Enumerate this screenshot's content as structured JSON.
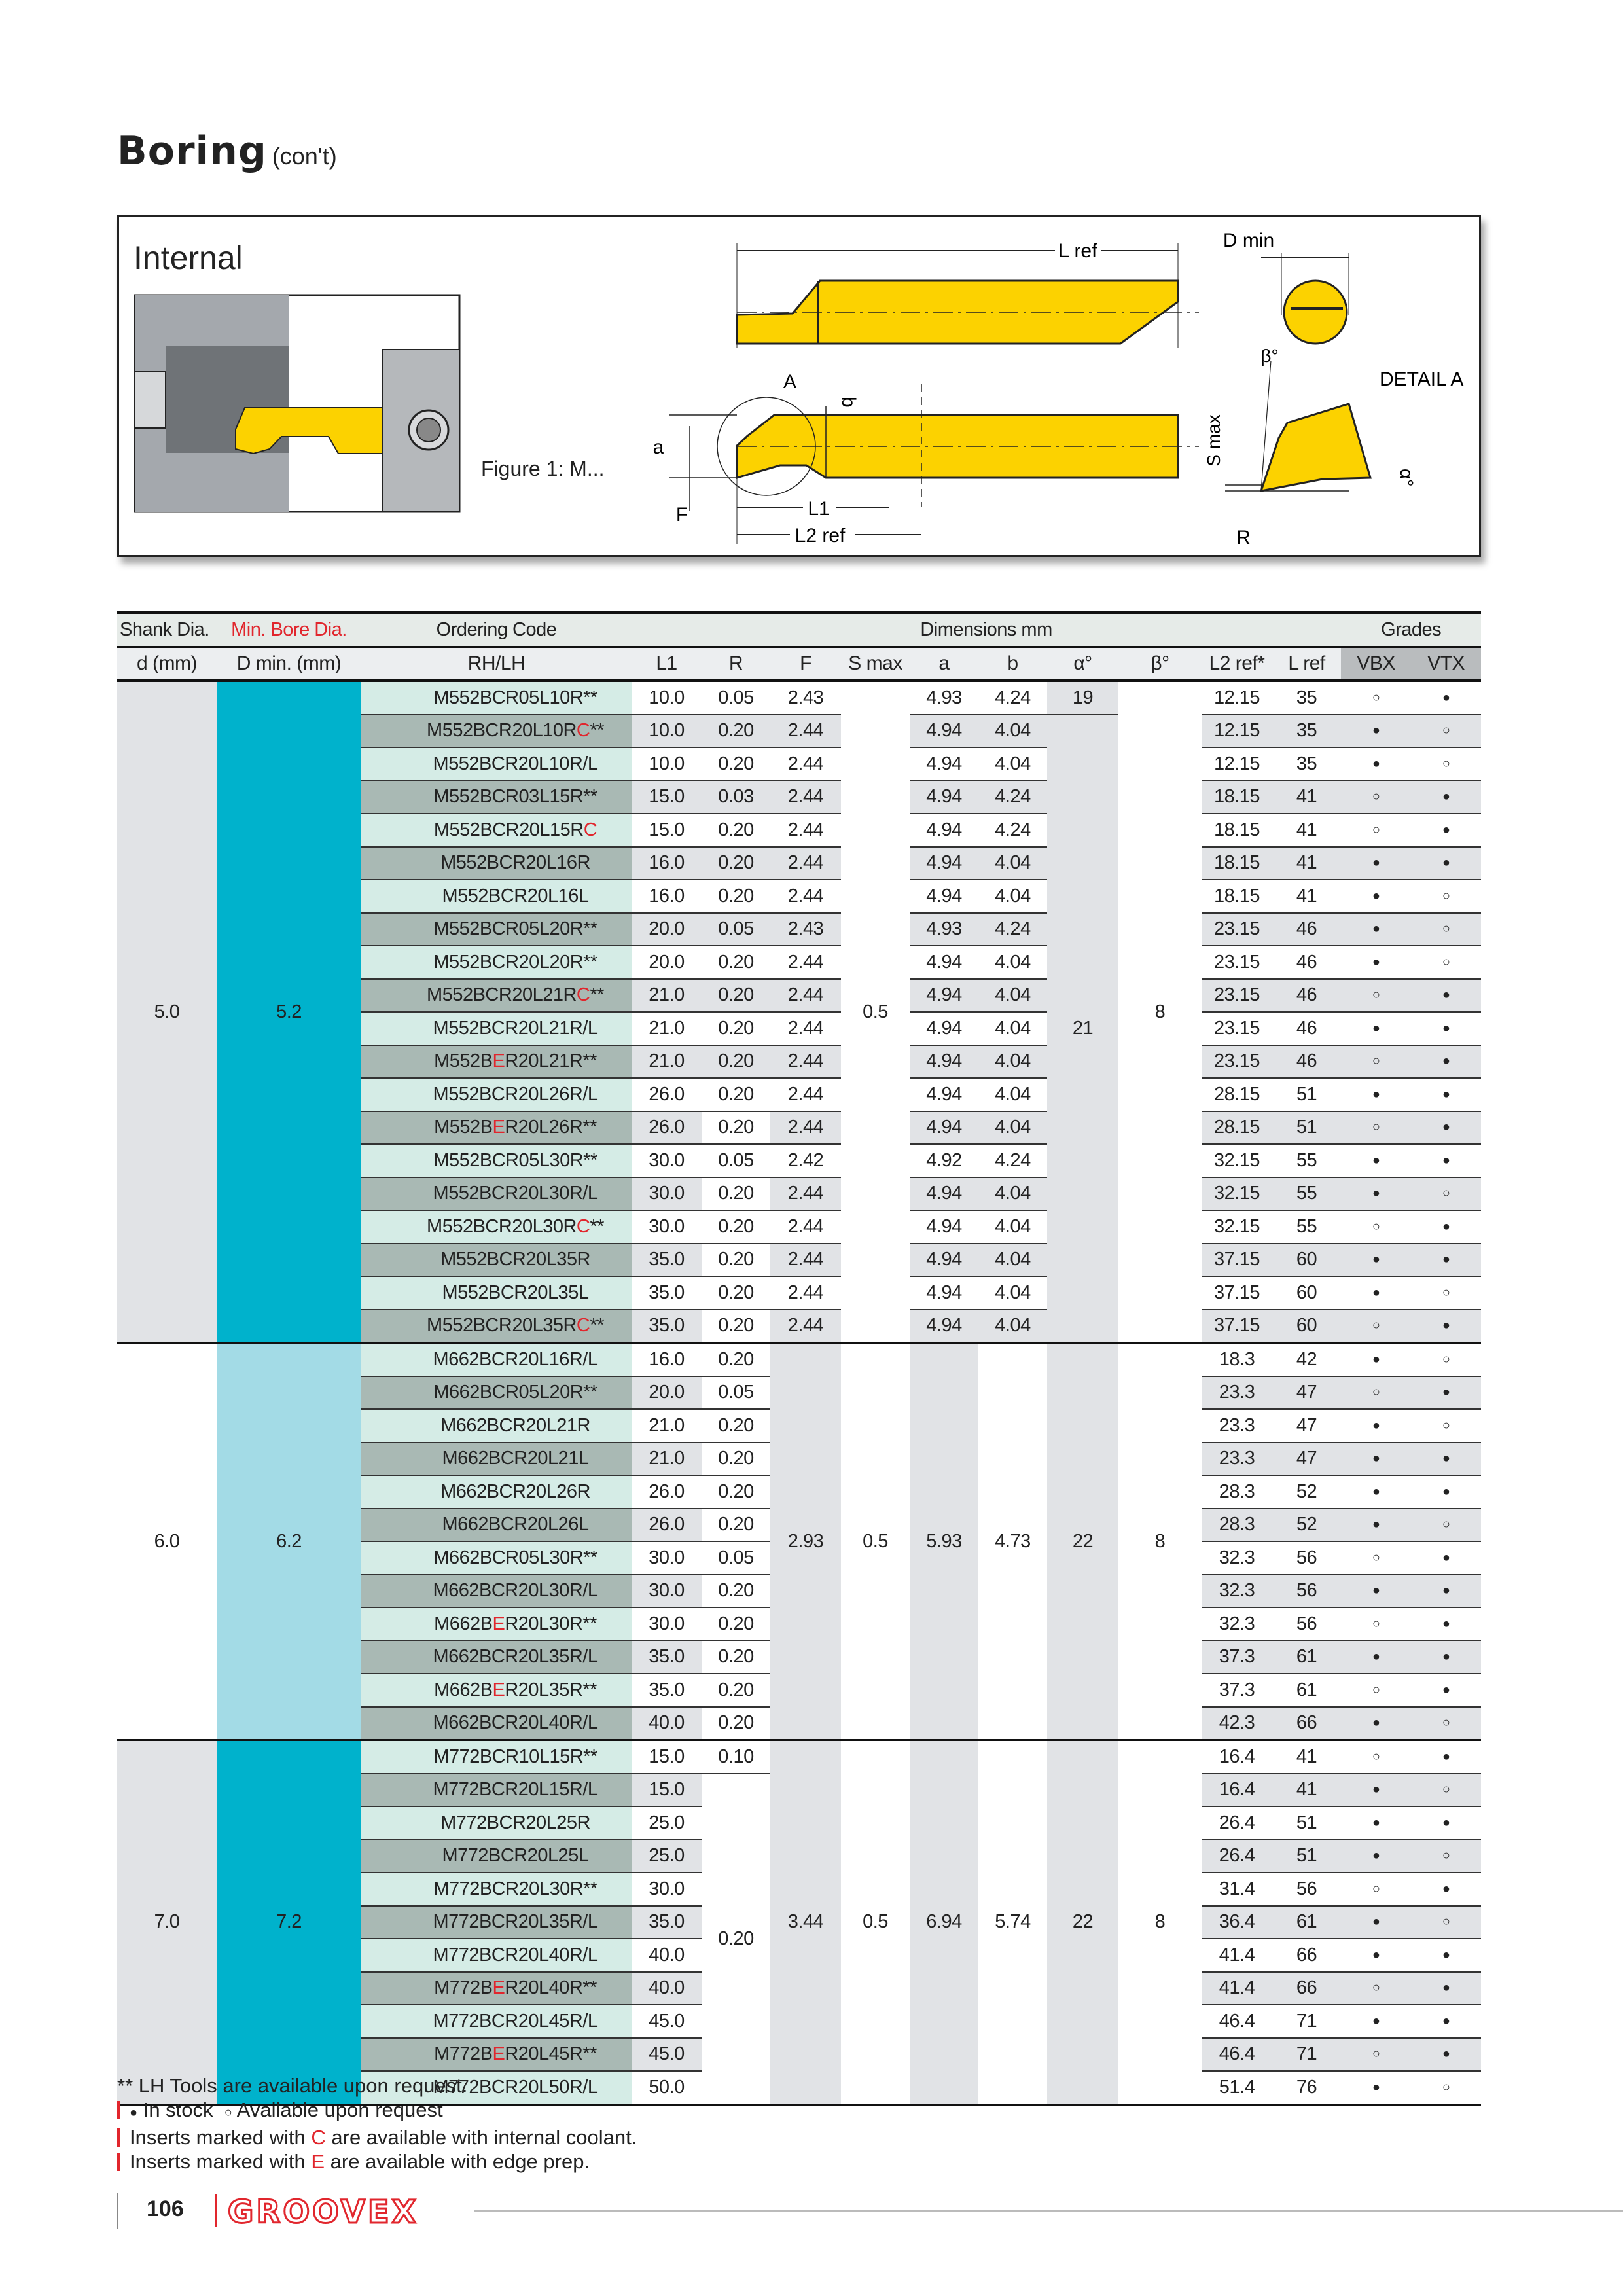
{
  "page": {
    "title": "Boring",
    "title_suffix": "(con't)",
    "page_number": "106",
    "brand": "GROOVEX"
  },
  "figure": {
    "heading": "Internal",
    "caption": "Figure 1: M...",
    "labels": {
      "lref": "L ref",
      "dmin": "D min",
      "A": "A",
      "b": "b",
      "a": "a",
      "F": "F",
      "L1": "L1",
      "L2ref": "L2 ref",
      "beta": "β°",
      "detail": "DETAIL A",
      "smax": "S max",
      "R": "R",
      "alpha": "α°"
    }
  },
  "colors": {
    "accent_red": "#e1262d",
    "tool_yellow": "#fcd200",
    "dmin_dark": "#00b2cc",
    "dmin_light": "#a3dbe6"
  },
  "table": {
    "header1": {
      "shank": "Shank Dia.",
      "minbore": "Min. Bore Dia.",
      "ordering": "Ordering Code",
      "dimensions": "Dimensions mm",
      "grades": "Grades"
    },
    "header2": {
      "d": "d (mm)",
      "dmin": "D min. (mm)",
      "code": "RH/LH",
      "L1": "L1",
      "R": "R",
      "F": "F",
      "smax": "S max",
      "a": "a",
      "b": "b",
      "alpha": "α°",
      "beta": "β°",
      "L2": "L2 ref*",
      "Lref": "L ref",
      "VBX": "VBX",
      "VTX": "VTX"
    },
    "groups": [
      {
        "d": "5.0",
        "dmin": "5.2",
        "dmin_color": "#00b2cc",
        "smax": "0.5",
        "alpha": "21",
        "beta": "8",
        "rows": [
          {
            "code": [
              "M552BCR05L10R**"
            ],
            "L1": "10.0",
            "R": "0.05",
            "F": "2.43",
            "a": "4.93",
            "b": "4.24",
            "alpha": "19",
            "L2": "12.15",
            "Lref": "35",
            "VBX": "○",
            "VTX": "●"
          },
          {
            "code": [
              "M552BCR20L10R",
              "C",
              "**"
            ],
            "L1": "10.0",
            "R": "0.20",
            "F": "2.44",
            "a": "4.94",
            "b": "4.04",
            "L2": "12.15",
            "Lref": "35",
            "VBX": "●",
            "VTX": "○"
          },
          {
            "code": [
              "M552BCR20L10R/L"
            ],
            "L1": "10.0",
            "R": "0.20",
            "F": "2.44",
            "a": "4.94",
            "b": "4.04",
            "L2": "12.15",
            "Lref": "35",
            "VBX": "●",
            "VTX": "○"
          },
          {
            "code": [
              "M552BCR03L15R**"
            ],
            "L1": "15.0",
            "R": "0.03",
            "F": "2.44",
            "a": "4.94",
            "b": "4.24",
            "L2": "18.15",
            "Lref": "41",
            "VBX": "○",
            "VTX": "●"
          },
          {
            "code": [
              "M552BCR20L15R",
              "C"
            ],
            "L1": "15.0",
            "R": "0.20",
            "F": "2.44",
            "a": "4.94",
            "b": "4.24",
            "L2": "18.15",
            "Lref": "41",
            "VBX": "○",
            "VTX": "●"
          },
          {
            "code": [
              "M552BCR20L16R"
            ],
            "L1": "16.0",
            "R": "0.20",
            "F": "2.44",
            "a": "4.94",
            "b": "4.04",
            "L2": "18.15",
            "Lref": "41",
            "VBX": "●",
            "VTX": "●"
          },
          {
            "code": [
              "M552BCR20L16L"
            ],
            "L1": "16.0",
            "R": "0.20",
            "F": "2.44",
            "a": "4.94",
            "b": "4.04",
            "L2": "18.15",
            "Lref": "41",
            "VBX": "●",
            "VTX": "○"
          },
          {
            "code": [
              "M552BCR05L20R**"
            ],
            "L1": "20.0",
            "R": "0.05",
            "F": "2.43",
            "a": "4.93",
            "b": "4.24",
            "L2": "23.15",
            "Lref": "46",
            "VBX": "●",
            "VTX": "○"
          },
          {
            "code": [
              "M552BCR20L20R**"
            ],
            "L1": "20.0",
            "R": "0.20",
            "F": "2.44",
            "a": "4.94",
            "b": "4.04",
            "L2": "23.15",
            "Lref": "46",
            "VBX": "●",
            "VTX": "○"
          },
          {
            "code": [
              "M552BCR20L21R",
              "C",
              "**"
            ],
            "L1": "21.0",
            "R": "0.20",
            "F": "2.44",
            "a": "4.94",
            "b": "4.04",
            "L2": "23.15",
            "Lref": "46",
            "VBX": "○",
            "VTX": "●"
          },
          {
            "code": [
              "M552BCR20L21R/L"
            ],
            "L1": "21.0",
            "R": "0.20",
            "F": "2.44",
            "a": "4.94",
            "b": "4.04",
            "L2": "23.15",
            "Lref": "46",
            "VBX": "●",
            "VTX": "●"
          },
          {
            "code": [
              "M552B",
              "E",
              "R20L21R**"
            ],
            "L1": "21.0",
            "R": "0.20",
            "F": "2.44",
            "a": "4.94",
            "b": "4.04",
            "L2": "23.15",
            "Lref": "46",
            "VBX": "○",
            "VTX": "●"
          },
          {
            "code": [
              "M552BCR20L26R/L"
            ],
            "L1": "26.0",
            "R": "0.20",
            "F": "2.44",
            "a": "4.94",
            "b": "4.04",
            "L2": "28.15",
            "Lref": "51",
            "VBX": "●",
            "VTX": "●"
          },
          {
            "code": [
              "M552B",
              "E",
              "R20L26R**"
            ],
            "L1": "26.0",
            "R": "0.20",
            "F": "2.44",
            "a": "4.94",
            "b": "4.04",
            "L2": "28.15",
            "Lref": "51",
            "VBX": "○",
            "VTX": "●"
          },
          {
            "code": [
              "M552BCR05L30R**"
            ],
            "L1": "30.0",
            "R": "0.05",
            "F": "2.42",
            "a": "4.92",
            "b": "4.24",
            "L2": "32.15",
            "Lref": "55",
            "VBX": "●",
            "VTX": "●"
          },
          {
            "code": [
              "M552BCR20L30R/L"
            ],
            "L1": "30.0",
            "R": "0.20",
            "F": "2.44",
            "a": "4.94",
            "b": "4.04",
            "L2": "32.15",
            "Lref": "55",
            "VBX": "●",
            "VTX": "○"
          },
          {
            "code": [
              "M552BCR20L30R",
              "C",
              "**"
            ],
            "L1": "30.0",
            "R": "0.20",
            "F": "2.44",
            "a": "4.94",
            "b": "4.04",
            "L2": "32.15",
            "Lref": "55",
            "VBX": "○",
            "VTX": "●"
          },
          {
            "code": [
              "M552BCR20L35R"
            ],
            "L1": "35.0",
            "R": "0.20",
            "F": "2.44",
            "a": "4.94",
            "b": "4.04",
            "L2": "37.15",
            "Lref": "60",
            "VBX": "●",
            "VTX": "●"
          },
          {
            "code": [
              "M552BCR20L35L"
            ],
            "L1": "35.0",
            "R": "0.20",
            "F": "2.44",
            "a": "4.94",
            "b": "4.04",
            "L2": "37.15",
            "Lref": "60",
            "VBX": "●",
            "VTX": "○"
          },
          {
            "code": [
              "M552BCR20L35R",
              "C",
              "**"
            ],
            "L1": "35.0",
            "R": "0.20",
            "F": "2.44",
            "a": "4.94",
            "b": "4.04",
            "L2": "37.15",
            "Lref": "60",
            "VBX": "○",
            "VTX": "●"
          }
        ]
      },
      {
        "d": "6.0",
        "dmin": "6.2",
        "dmin_color": "#a3dbe6",
        "F": "2.93",
        "smax": "0.5",
        "a": "5.93",
        "b": "4.73",
        "alpha": "22",
        "beta": "8",
        "rows": [
          {
            "code": [
              "M662BCR20L16R/L"
            ],
            "L1": "16.0",
            "R": "0.20",
            "L2": "18.3",
            "Lref": "42",
            "VBX": "●",
            "VTX": "○"
          },
          {
            "code": [
              "M662BCR05L20R**"
            ],
            "L1": "20.0",
            "R": "0.05",
            "L2": "23.3",
            "Lref": "47",
            "VBX": "○",
            "VTX": "●"
          },
          {
            "code": [
              "M662BCR20L21R"
            ],
            "L1": "21.0",
            "R": "0.20",
            "L2": "23.3",
            "Lref": "47",
            "VBX": "●",
            "VTX": "○"
          },
          {
            "code": [
              "M662BCR20L21L"
            ],
            "L1": "21.0",
            "R": "0.20",
            "L2": "23.3",
            "Lref": "47",
            "VBX": "●",
            "VTX": "●"
          },
          {
            "code": [
              "M662BCR20L26R"
            ],
            "L1": "26.0",
            "R": "0.20",
            "L2": "28.3",
            "Lref": "52",
            "VBX": "●",
            "VTX": "●"
          },
          {
            "code": [
              "M662BCR20L26L"
            ],
            "L1": "26.0",
            "R": "0.20",
            "L2": "28.3",
            "Lref": "52",
            "VBX": "●",
            "VTX": "○"
          },
          {
            "code": [
              "M662BCR05L30R**"
            ],
            "L1": "30.0",
            "R": "0.05",
            "L2": "32.3",
            "Lref": "56",
            "VBX": "○",
            "VTX": "●"
          },
          {
            "code": [
              "M662BCR20L30R/L"
            ],
            "L1": "30.0",
            "R": "0.20",
            "L2": "32.3",
            "Lref": "56",
            "VBX": "●",
            "VTX": "●"
          },
          {
            "code": [
              "M662B",
              "E",
              "R20L30R**"
            ],
            "L1": "30.0",
            "R": "0.20",
            "L2": "32.3",
            "Lref": "56",
            "VBX": "○",
            "VTX": "●"
          },
          {
            "code": [
              "M662BCR20L35R/L"
            ],
            "L1": "35.0",
            "R": "0.20",
            "L2": "37.3",
            "Lref": "61",
            "VBX": "●",
            "VTX": "●"
          },
          {
            "code": [
              "M662B",
              "E",
              "R20L35R**"
            ],
            "L1": "35.0",
            "R": "0.20",
            "L2": "37.3",
            "Lref": "61",
            "VBX": "○",
            "VTX": "●"
          },
          {
            "code": [
              "M662BCR20L40R/L"
            ],
            "L1": "40.0",
            "R": "0.20",
            "L2": "42.3",
            "Lref": "66",
            "VBX": "●",
            "VTX": "○"
          }
        ]
      },
      {
        "d": "7.0",
        "dmin": "7.2",
        "dmin_color": "#00b2cc",
        "R": "0.20",
        "F": "3.44",
        "smax": "0.5",
        "a": "6.94",
        "b": "5.74",
        "alpha": "22",
        "beta": "8",
        "rows": [
          {
            "code": [
              "M772BCR10L15R**"
            ],
            "L1": "15.0",
            "R": "0.10",
            "L2": "16.4",
            "Lref": "41",
            "VBX": "○",
            "VTX": "●"
          },
          {
            "code": [
              "M772BCR20L15R/L"
            ],
            "L1": "15.0",
            "L2": "16.4",
            "Lref": "41",
            "VBX": "●",
            "VTX": "○"
          },
          {
            "code": [
              "M772BCR20L25R"
            ],
            "L1": "25.0",
            "L2": "26.4",
            "Lref": "51",
            "VBX": "●",
            "VTX": "●"
          },
          {
            "code": [
              "M772BCR20L25L"
            ],
            "L1": "25.0",
            "L2": "26.4",
            "Lref": "51",
            "VBX": "●",
            "VTX": "○"
          },
          {
            "code": [
              "M772BCR20L30R**"
            ],
            "L1": "30.0",
            "L2": "31.4",
            "Lref": "56",
            "VBX": "○",
            "VTX": "●"
          },
          {
            "code": [
              "M772BCR20L35R/L"
            ],
            "L1": "35.0",
            "L2": "36.4",
            "Lref": "61",
            "VBX": "●",
            "VTX": "○"
          },
          {
            "code": [
              "M772BCR20L40R/L"
            ],
            "L1": "40.0",
            "L2": "41.4",
            "Lref": "66",
            "VBX": "●",
            "VTX": "●"
          },
          {
            "code": [
              "M772B",
              "E",
              "R20L40R**"
            ],
            "L1": "40.0",
            "L2": "41.4",
            "Lref": "66",
            "VBX": "○",
            "VTX": "●"
          },
          {
            "code": [
              "M772BCR20L45R/L"
            ],
            "L1": "45.0",
            "L2": "46.4",
            "Lref": "71",
            "VBX": "●",
            "VTX": "●"
          },
          {
            "code": [
              "M772B",
              "E",
              "R20L45R**"
            ],
            "L1": "45.0",
            "L2": "46.4",
            "Lref": "71",
            "VBX": "○",
            "VTX": "●"
          },
          {
            "code": [
              "M772BCR20L50R/L"
            ],
            "L1": "50.0",
            "L2": "51.4",
            "Lref": "76",
            "VBX": "●",
            "VTX": "○"
          }
        ]
      }
    ]
  },
  "notes": {
    "lh": "** LH Tools are available upon request.",
    "in_stock_symbol": "●",
    "in_stock": "In stock",
    "request_symbol": "○",
    "request": "Available upon request",
    "coolant_pre": "Inserts marked with ",
    "coolant_letter": "C",
    "coolant_post": " are available with internal coolant.",
    "edge_pre": "Inserts marked with ",
    "edge_letter": "E",
    "edge_post": " are available with edge prep."
  }
}
